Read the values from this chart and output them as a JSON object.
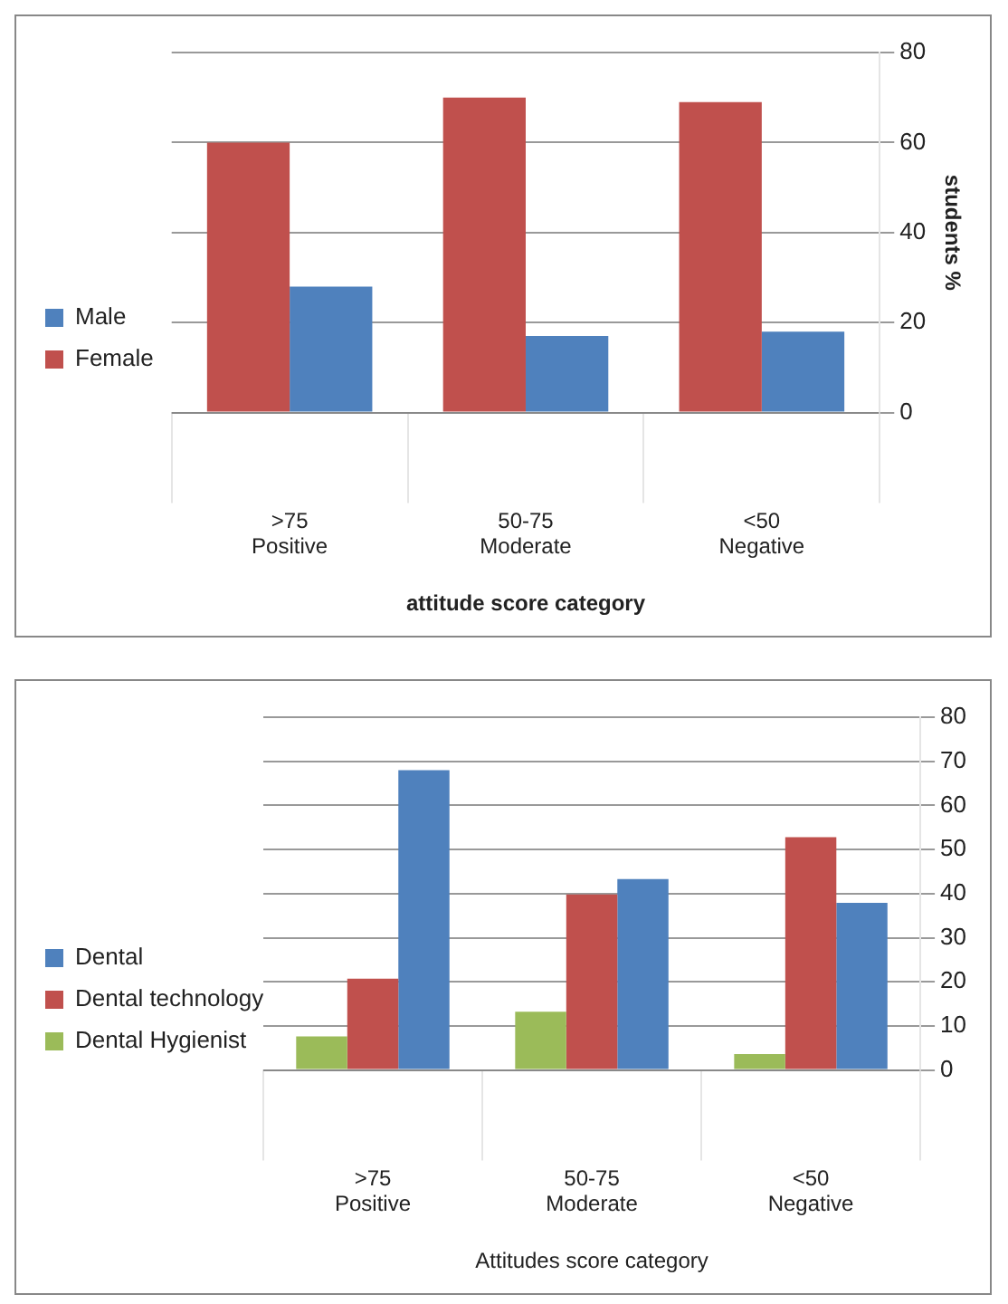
{
  "chart_data": [
    {
      "type": "bar",
      "categories": [
        ">75\nPositive",
        "50-75\nModerate",
        "<50\nNegative"
      ],
      "xlabel": "attitude score category",
      "ylabel": "students %",
      "ylim": [
        0,
        80
      ],
      "yticks": [
        0,
        20,
        40,
        60,
        80
      ],
      "grid": "y",
      "legend": "left",
      "series": [
        {
          "name": "Female",
          "color": "#c0504d",
          "values": [
            60,
            70,
            69
          ]
        },
        {
          "name": "Male",
          "color": "#4f81bd",
          "values": [
            28,
            17,
            18
          ]
        }
      ]
    },
    {
      "type": "bar",
      "categories": [
        ">75\nPositive",
        "50-75\nModerate",
        "<50\nNegative"
      ],
      "xlabel": "Attitudes score category",
      "ylim": [
        0,
        80
      ],
      "yticks": [
        0,
        10,
        20,
        30,
        40,
        50,
        60,
        70,
        80
      ],
      "grid": "y",
      "legend": "left",
      "series": [
        {
          "name": "Dental Hygienist",
          "color": "#9bbb59",
          "values": [
            7.6,
            13.2,
            3.6
          ]
        },
        {
          "name": "Dental technology",
          "color": "#c0504d",
          "values": [
            20.7,
            39.8,
            52.8
          ]
        },
        {
          "name": "Dental",
          "color": "#4f81bd",
          "values": [
            68,
            43.3,
            37.9
          ]
        }
      ]
    }
  ]
}
